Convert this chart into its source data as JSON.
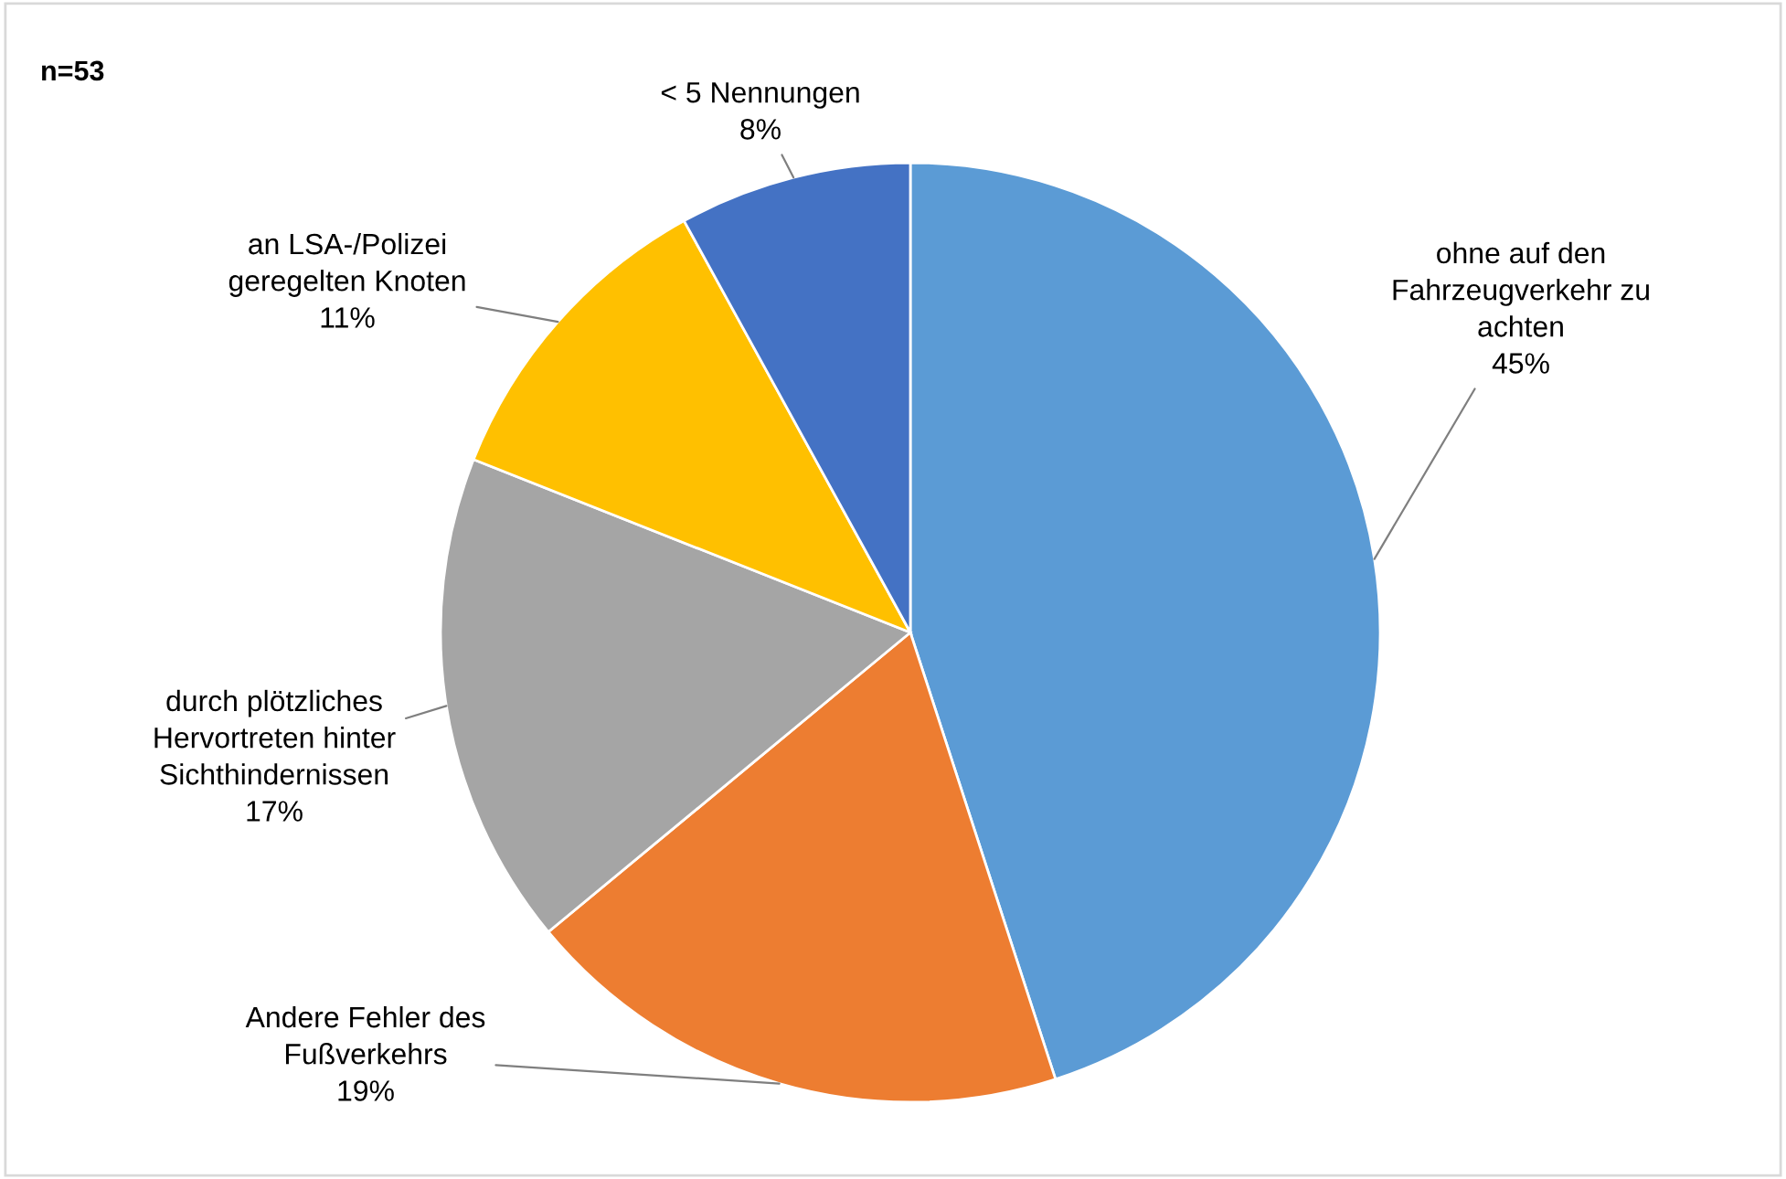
{
  "chart_data": {
    "type": "pie",
    "categories": [
      "ohne auf den\nFahrzeugverkehr zu\nachten",
      "Andere Fehler des\nFußverkehrs",
      "durch plötzliches\nHervortreten hinter\nSichthindernissen",
      "an LSA-/Polizei\ngeregelten Knoten",
      "< 5 Nennungen"
    ],
    "values": [
      45,
      19,
      17,
      11,
      8
    ],
    "colors": [
      "#5b9bd5",
      "#ed7d31",
      "#a5a5a5",
      "#ffc000",
      "#4472c4"
    ],
    "value_labels": [
      "45%",
      "19%",
      "17%",
      "11%",
      "8%"
    ],
    "annotations": [
      "n=53"
    ]
  }
}
